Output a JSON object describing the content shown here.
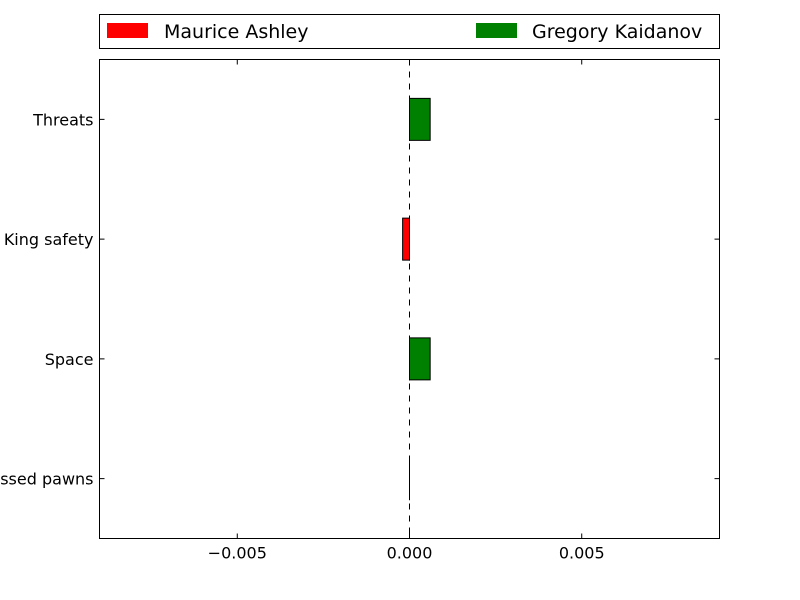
{
  "chart_data": {
    "type": "bar",
    "orientation": "horizontal",
    "categories": [
      "Threats",
      "King safety",
      "Space",
      "Passed pawns"
    ],
    "visible_category_text": [
      "Threats",
      "King safety",
      "Space",
      "ssed pawns"
    ],
    "series": [
      {
        "name": "Maurice Ashley",
        "color": "#ff0000",
        "values": [
          0,
          -0.0002,
          0,
          0
        ]
      },
      {
        "name": "Gregory Kaidanov",
        "color": "#008000",
        "values": [
          0.0006,
          0,
          0.0006,
          0
        ]
      }
    ],
    "xlim": [
      -0.009,
      0.009
    ],
    "xticks": [
      -0.005,
      0.0,
      0.005
    ],
    "xtick_labels": [
      "−0.005",
      "0.000",
      "0.005"
    ],
    "zero_line": "dashed",
    "grid": false,
    "legend_position": "top, above plot, two columns"
  }
}
